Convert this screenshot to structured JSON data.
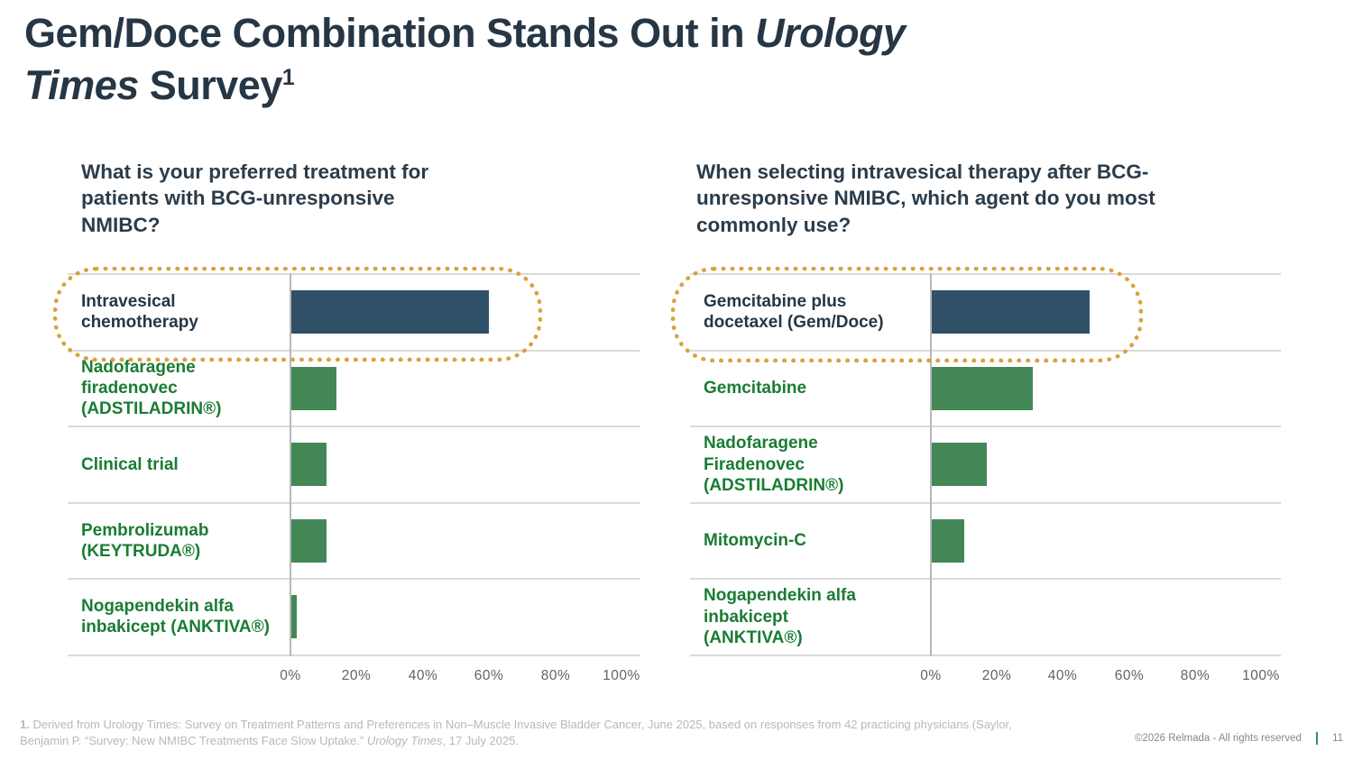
{
  "title": {
    "text_before_italic": "Gem/Doce Combination Stands Out in ",
    "italic_text": "Urology\nTimes",
    "text_after_italic": " Survey",
    "footnote_ref": "1"
  },
  "charts": [
    {
      "question": "What is your preferred treatment for\npatients with BCG-unresponsive\nNMIBC?",
      "rows": [
        {
          "label": "Intravesical\nchemotherapy"
        },
        {
          "label": "Nadofaragene\nfiradenovec\n(ADSTILADRIN®)"
        },
        {
          "label": "Clinical trial"
        },
        {
          "label": "Pembrolizumab\n(KEYTRUDA®)"
        },
        {
          "label": "Nogapendekin alfa\ninbakicept (ANKTIVA®)"
        }
      ]
    },
    {
      "question": "When selecting intravesical therapy after BCG-\nunresponsive NMIBC, which agent do you most\ncommonly use?",
      "rows": [
        {
          "label": "Gemcitabine plus\ndocetaxel (Gem/Doce)"
        },
        {
          "label": "Gemcitabine"
        },
        {
          "label": "Nadofaragene\nFiradenovec\n(ADSTILADRIN®)"
        },
        {
          "label": "Mitomycin-C"
        },
        {
          "label": "Nogapendekin alfa\ninbakicept\n(ANKTIVA®)"
        }
      ]
    }
  ],
  "chart_data": [
    {
      "type": "bar",
      "orientation": "horizontal",
      "title": "What is your preferred treatment for patients with BCG-unresponsive NMIBC?",
      "categories": [
        "Intravesical chemotherapy",
        "Nadofaragene firadenovec (ADSTILADRIN®)",
        "Clinical trial",
        "Pembrolizumab (KEYTRUDA®)",
        "Nogapendekin alfa inbakicept (ANKTIVA®)"
      ],
      "values": [
        60,
        14,
        11,
        11,
        2
      ],
      "xlabel": "",
      "ylabel": "",
      "xlim": [
        0,
        100
      ],
      "x_tick_labels": [
        "0%",
        "20%",
        "40%",
        "60%",
        "80%",
        "100%"
      ],
      "grid": "horizontal row separators only",
      "legend": "none",
      "highlighted_category": "Intravesical chemotherapy",
      "highlight_style": "gold dotted rounded outline",
      "bar_colors": [
        "#2f5066",
        "#448757",
        "#448757",
        "#448757",
        "#448757"
      ]
    },
    {
      "type": "bar",
      "orientation": "horizontal",
      "title": "When selecting intravesical therapy after BCG-unresponsive NMIBC, which agent do you most commonly use?",
      "categories": [
        "Gemcitabine plus docetaxel (Gem/Doce)",
        "Gemcitabine",
        "Nadofaragene Firadenovec (ADSTILADRIN®)",
        "Mitomycin-C",
        "Nogapendekin alfa inbakicept (ANKTIVA®)"
      ],
      "values": [
        48,
        31,
        17,
        10,
        0
      ],
      "xlabel": "",
      "ylabel": "",
      "xlim": [
        0,
        100
      ],
      "x_tick_labels": [
        "0%",
        "20%",
        "40%",
        "60%",
        "80%",
        "100%"
      ],
      "grid": "horizontal row separators only",
      "legend": "none",
      "highlighted_category": "Gemcitabine plus docetaxel (Gem/Doce)",
      "highlight_style": "gold dotted rounded outline",
      "bar_colors": [
        "#2f5066",
        "#448757",
        "#448757",
        "#448757",
        "#448757"
      ]
    }
  ],
  "footnote": {
    "marker": "1.",
    "text_part1": " Derived from Urology Times: Survey on Treatment Patterns and Preferences in Non–Muscle Invasive Bladder Cancer, June 2025, based on responses from 42 practicing physicians (Saylor,\nBenjamin P. “Survey: New NMIBC Treatments Face Slow Uptake.” ",
    "italic_text": "Urology Times",
    "text_part2": ", 17 July 2025."
  },
  "footer": {
    "copyright": "©2026 Relmada - All rights reserved",
    "separator": "|",
    "page_number": "11"
  },
  "colors": {
    "title_text": "#263645",
    "green_label": "#1a7c33",
    "navy_bar": "#2f5066",
    "green_bar": "#448757",
    "highlight_dotted": "#d9a23f",
    "grid_line": "#dadada",
    "axis_line": "#b9b9b9",
    "tick_text": "#5d646b",
    "footnote_text": "#b5b9bc",
    "footer_pipe_green": "#2e8b57"
  }
}
